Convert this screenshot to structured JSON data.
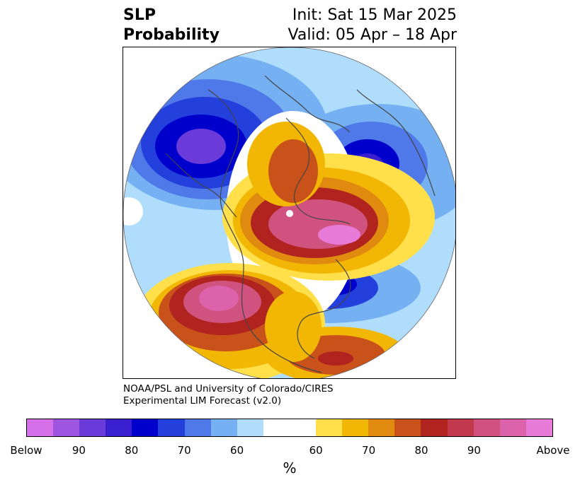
{
  "header": {
    "variable_line1": "SLP",
    "variable_line2": "Probability",
    "init_text": "Init: Sat 15 Mar 2025",
    "valid_text": "Valid: 05 Apr – 18 Apr"
  },
  "credit": {
    "line1": "NOAA/PSL and University of Colorado/CIRES",
    "line2": "Experimental LIM Forecast (v2.0)"
  },
  "map": {
    "projection": "north-polar-stereographic",
    "features": [
      {
        "region": "North Pacific / Gulf of Alaska",
        "category": "Above",
        "level": "90"
      },
      {
        "region": "Western North America",
        "category": "Above",
        "level": "80-90"
      },
      {
        "region": "Arctic Ocean / Barents Sea",
        "category": "Above",
        "level": "90"
      },
      {
        "region": "Northern Europe / Scandinavia",
        "category": "Above",
        "level": "70-80"
      },
      {
        "region": "Western Atlantic off US East Coast",
        "category": "Above",
        "level": "70-80"
      },
      {
        "region": "North Atlantic (Labrador Sea)",
        "category": "Below",
        "level": "80-90"
      },
      {
        "region": "Central Asia / Siberia",
        "category": "Below",
        "level": "90"
      },
      {
        "region": "Northeastern Europe",
        "category": "Below",
        "level": "80-90"
      },
      {
        "region": "East Pacific / Eastern Asia rim",
        "category": "Below",
        "level": "60-70"
      }
    ]
  },
  "colorbar": {
    "unit": "%",
    "colors": [
      "#d670e8",
      "#9e55e0",
      "#6a3bd8",
      "#3a1fd0",
      "#0000cc",
      "#2340dd",
      "#4f78e8",
      "#74b0f2",
      "#b0ddfc",
      "#ffffff",
      "#ffe04a",
      "#f2b705",
      "#e08a10",
      "#c8521a",
      "#b0231f",
      "#c2394e",
      "#d0537f",
      "#dc62ac",
      "#e87ad8"
    ],
    "labels": [
      "Below",
      "90",
      "80",
      "70",
      "60",
      "60",
      "70",
      "80",
      "90",
      "Above"
    ]
  }
}
